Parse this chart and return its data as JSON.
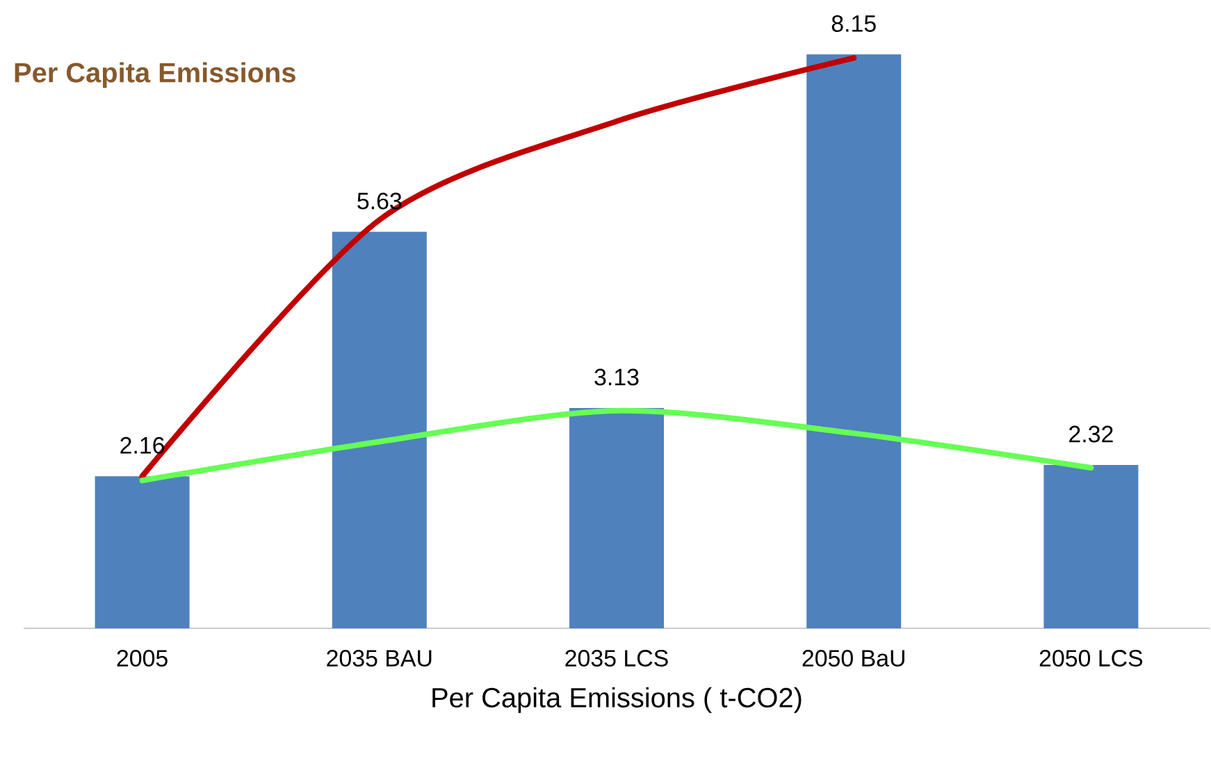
{
  "chart_data": {
    "type": "bar",
    "title": "Per Capita Emissions",
    "xlabel": "Per Capita Emissions ( t-CO2)",
    "categories": [
      "2005",
      "2035 BAU",
      "2035 LCS",
      "2050 BaU",
      "2050 LCS"
    ],
    "series": [
      {
        "color": "#4f81bd",
        "values": [
          2.16,
          5.63,
          3.13,
          8.15,
          2.32
        ],
        "value_labels": [
          "2.16",
          "5.63",
          "3.13",
          "8.15",
          "2.32"
        ]
      },
      {
        "type": "line",
        "color": "#c00000",
        "values": [
          2.16,
          5.8,
          7.2,
          8.1,
          null
        ]
      },
      {
        "type": "line",
        "color": "#66ff55",
        "values": [
          2.1,
          2.65,
          3.09,
          2.77,
          2.28
        ]
      }
    ]
  }
}
